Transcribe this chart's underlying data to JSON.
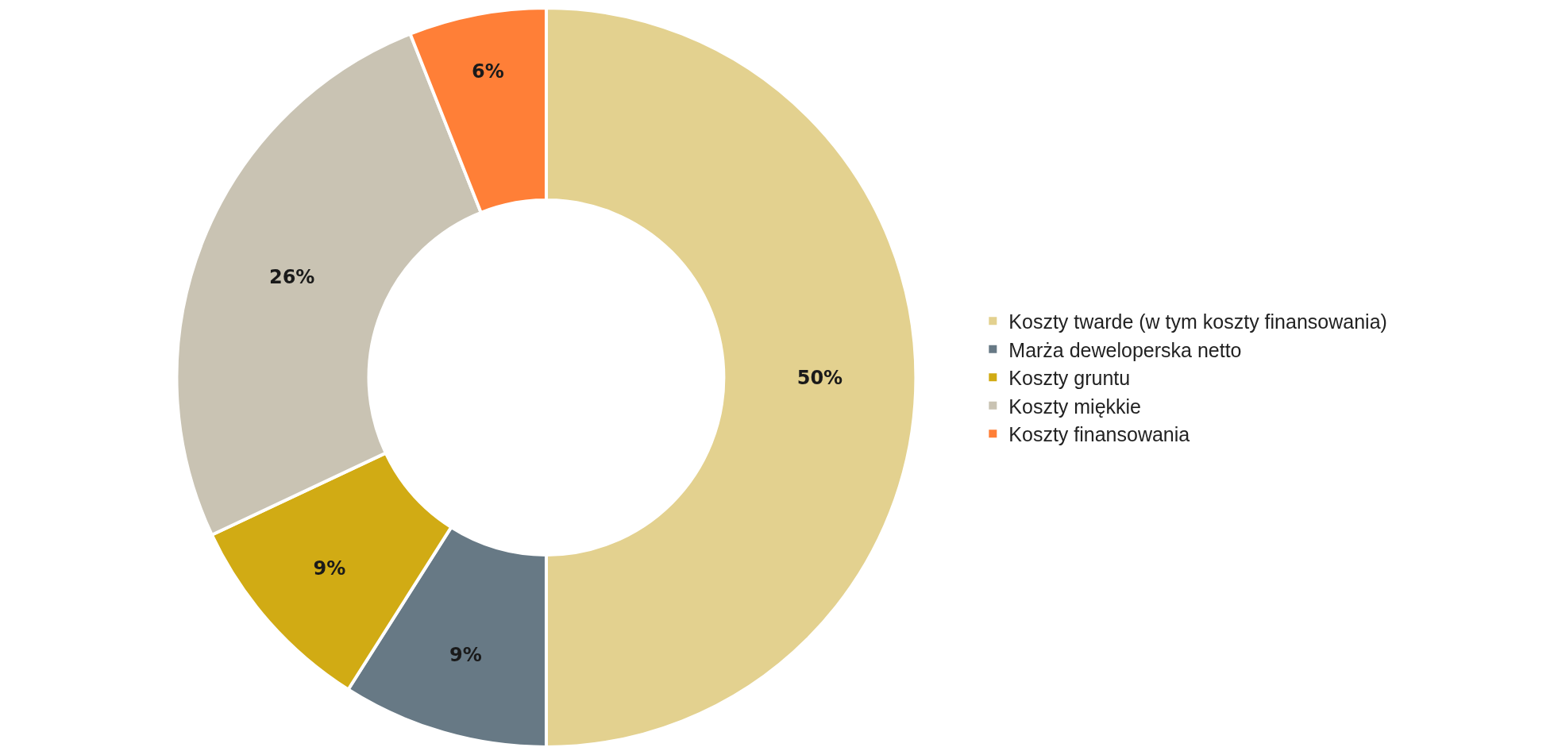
{
  "chart_data": {
    "type": "donut",
    "categories": [
      "Koszty twarde (w tym koszty finansowania)",
      "Marża deweloperska netto",
      "Koszty gruntu",
      "Koszty miękkie",
      "Koszty finansowania"
    ],
    "values": [
      50,
      9,
      9,
      26,
      6
    ],
    "value_labels": [
      "50%",
      "9%",
      "9%",
      "26%",
      "6%"
    ],
    "colors": [
      "#e3d18f",
      "#677985",
      "#d1ab14",
      "#c9c3b3",
      "#ff7f37"
    ],
    "legend": "right"
  }
}
